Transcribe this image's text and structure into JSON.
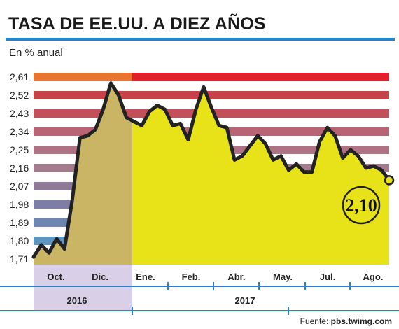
{
  "title": "TASA DE EE.UU. A DIEZ AÑOS",
  "subtitle": "En % anual",
  "source_label": "Fuente:",
  "source_value": "pbs.twimg.com",
  "callout": "2,10",
  "colors": {
    "rule": "#2a83c8",
    "fill_2016": "#c9b563",
    "fill_2017": "#e8e318",
    "line": "#222222",
    "year_2016_bg": "#d9d0e8",
    "axis": "#2a83c8"
  },
  "chart_data": {
    "type": "area",
    "y_ticks": [
      "2,61",
      "2,52",
      "2,43",
      "2,34",
      "2,25",
      "2,16",
      "2,07",
      "1,98",
      "1,89",
      "1,80",
      "1,71"
    ],
    "ylim": [
      1.71,
      2.61
    ],
    "months": [
      "Oct.",
      "Dic.",
      "Ene.",
      "Feb.",
      "Abr.",
      "May.",
      "Jul.",
      "Ago."
    ],
    "years": [
      "2016",
      "2017"
    ],
    "series": [
      {
        "values": [
          1.72,
          1.78,
          1.74,
          1.81,
          1.76,
          2.0,
          2.31,
          2.32,
          2.35,
          2.45,
          2.58,
          2.52,
          2.41,
          2.39,
          2.37,
          2.44,
          2.47,
          2.45,
          2.37,
          2.38,
          2.3,
          2.45,
          2.56,
          2.46,
          2.37,
          2.36,
          2.2,
          2.22,
          2.27,
          2.32,
          2.28,
          2.2,
          2.22,
          2.15,
          2.18,
          2.14,
          2.14,
          2.29,
          2.36,
          2.32,
          2.21,
          2.25,
          2.22,
          2.16,
          2.17,
          2.15,
          2.1
        ]
      }
    ],
    "last_value": 2.1
  }
}
